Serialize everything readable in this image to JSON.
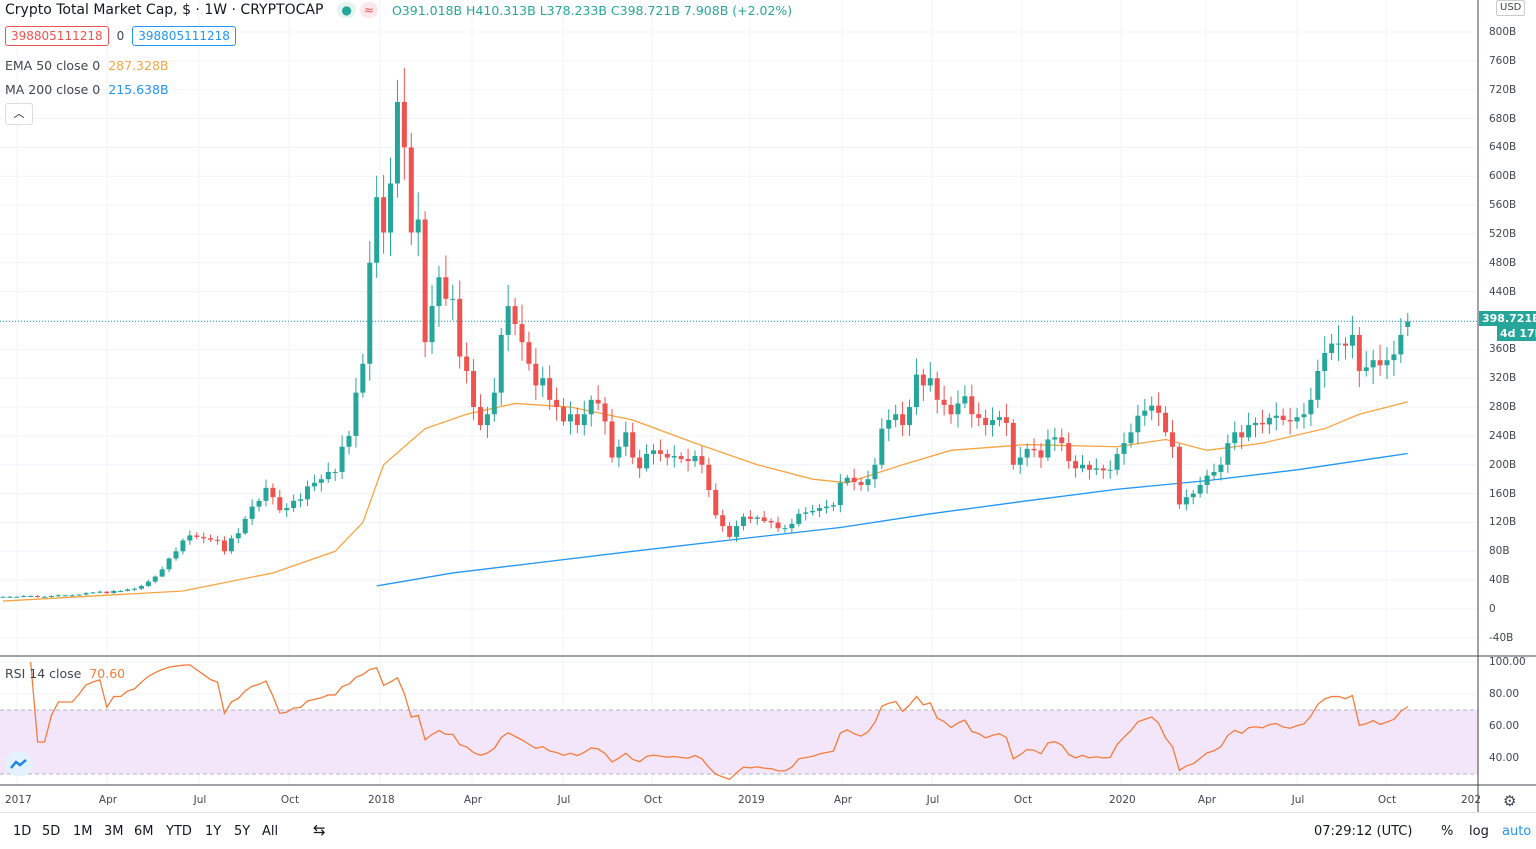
{
  "header": {
    "title": "Crypto Total Market Cap, $ · 1W · CRYPTOCAP",
    "status_dot_color": "#26a69a",
    "badge_symbol": "≈",
    "ohlc": {
      "o": "O391.018B",
      "h": "H410.313B",
      "l": "L378.233B",
      "c": "C398.721B",
      "change": "7.908B (+2.02%)"
    },
    "sell_box": "398805111218",
    "spread": "0",
    "buy_box": "398805111218",
    "ema_label": "EMA 50 close 0",
    "ema_value": "287.328B",
    "ma_label": "MA 200 close 0",
    "ma_value": "215.638B",
    "collapse_icon": "chevron-up-icon"
  },
  "price_axis": {
    "currency": "USD",
    "ticks": [
      "800B",
      "760B",
      "720B",
      "680B",
      "640B",
      "600B",
      "560B",
      "520B",
      "480B",
      "440B",
      "360B",
      "320B",
      "280B",
      "240B",
      "200B",
      "160B",
      "120B",
      "80B",
      "40B",
      "0",
      "-40B"
    ],
    "current_price_label": "398.721B",
    "countdown_label": "4d 17h"
  },
  "rsi": {
    "label": "RSI 14 close",
    "value": "70.60",
    "ticks": [
      "100.00",
      "80.00",
      "60.00",
      "40.00"
    ]
  },
  "time_axis": {
    "ticks": [
      "2017",
      "Apr",
      "Jul",
      "Oct",
      "2018",
      "Apr",
      "Jul",
      "Oct",
      "2019",
      "Apr",
      "Jul",
      "Oct",
      "2020",
      "Apr",
      "Jul",
      "Oct",
      "202"
    ]
  },
  "toolbar": {
    "ranges": [
      "1D",
      "5D",
      "1M",
      "3M",
      "6M",
      "YTD",
      "1Y",
      "5Y",
      "All"
    ],
    "compare_icon": "date-range-icon",
    "time": "07:29:12 (UTC)",
    "percent": "%",
    "log": "log",
    "auto": "auto",
    "settings_icon": "gear-icon"
  },
  "chart_data": {
    "type": "candlestick",
    "interval": "1W",
    "first_week": "2016-12-05",
    "unit": "B USD",
    "ylim": [
      -40,
      800
    ],
    "grid": true,
    "colors": {
      "up": "#26a69a",
      "down": "#ef5350",
      "ema": "#f7a541",
      "ma": "#2196f3",
      "rsi": "#f57c3a",
      "rsi_band": "#f3e6fb"
    },
    "closes": [
      17,
      17,
      17,
      18,
      18,
      17,
      17,
      18,
      19,
      19,
      19,
      20,
      22,
      23,
      24,
      22,
      25,
      25,
      27,
      28,
      32,
      38,
      45,
      55,
      70,
      80,
      95,
      102,
      100,
      98,
      96,
      95,
      80,
      98,
      105,
      125,
      142,
      150,
      168,
      155,
      137,
      140,
      150,
      152,
      170,
      175,
      180,
      190,
      190,
      225,
      240,
      300,
      340,
      480,
      571,
      522,
      590,
      703,
      640,
      522,
      540,
      370,
      420,
      460,
      430,
      430,
      350,
      330,
      280,
      255,
      270,
      300,
      380,
      420,
      395,
      370,
      340,
      310,
      320,
      290,
      280,
      260,
      270,
      255,
      270,
      290,
      285,
      260,
      210,
      225,
      245,
      210,
      195,
      215,
      220,
      215,
      210,
      212,
      208,
      205,
      212,
      200,
      165,
      130,
      115,
      100,
      115,
      128,
      125,
      127,
      122,
      120,
      112,
      112,
      118,
      132,
      134,
      136,
      140,
      142,
      144,
      175,
      182,
      176,
      172,
      180,
      200,
      250,
      262,
      270,
      255,
      280,
      325,
      310,
      320,
      290,
      283,
      270,
      285,
      295,
      270,
      265,
      255,
      262,
      266,
      258,
      200,
      210,
      222,
      220,
      210,
      235,
      238,
      230,
      205,
      195,
      200,
      193,
      195,
      192,
      193,
      215,
      230,
      245,
      268,
      275,
      282,
      272,
      245,
      225,
      145,
      155,
      160,
      172,
      185,
      190,
      200,
      230,
      245,
      238,
      255,
      258,
      256,
      265,
      268,
      262,
      260,
      266,
      270,
      290,
      330,
      355,
      368,
      368,
      365,
      380,
      330,
      335,
      345,
      338,
      345,
      353,
      380,
      398.721
    ],
    "last_candle": {
      "open": 391.018,
      "high": 410.313,
      "low": 378.233,
      "close": 398.721
    },
    "ema50": [
      [
        "2016-12-05",
        11
      ],
      [
        "2017-06-05",
        25
      ],
      [
        "2017-09-04",
        50
      ],
      [
        "2017-11-06",
        80
      ],
      [
        "2017-12-04",
        120
      ],
      [
        "2017-12-25",
        200
      ],
      [
        "2018-02-05",
        250
      ],
      [
        "2018-03-19",
        270
      ],
      [
        "2018-05-07",
        285
      ],
      [
        "2018-07-02",
        280
      ],
      [
        "2018-09-03",
        262
      ],
      [
        "2018-11-05",
        230
      ],
      [
        "2019-01-07",
        200
      ],
      [
        "2019-03-04",
        180
      ],
      [
        "2019-04-08",
        175
      ],
      [
        "2019-06-03",
        200
      ],
      [
        "2019-07-22",
        220
      ],
      [
        "2019-10-07",
        228
      ],
      [
        "2020-01-06",
        225
      ],
      [
        "2020-02-24",
        235
      ],
      [
        "2020-04-06",
        220
      ],
      [
        "2020-06-01",
        230
      ],
      [
        "2020-08-03",
        250
      ],
      [
        "2020-09-07",
        270
      ],
      [
        "2020-10-26",
        287.328
      ]
    ],
    "ma200": [
      [
        "2017-12-18",
        32
      ],
      [
        "2018-03-05",
        50
      ],
      [
        "2018-06-04",
        65
      ],
      [
        "2018-09-03",
        80
      ],
      [
        "2019-01-07",
        100
      ],
      [
        "2019-04-01",
        113
      ],
      [
        "2019-07-01",
        132
      ],
      [
        "2019-10-07",
        150
      ],
      [
        "2020-01-06",
        166
      ],
      [
        "2020-04-06",
        178
      ],
      [
        "2020-07-06",
        193
      ],
      [
        "2020-10-26",
        215.638
      ]
    ],
    "rsi_levels": {
      "upper": 70,
      "lower": 30
    }
  }
}
